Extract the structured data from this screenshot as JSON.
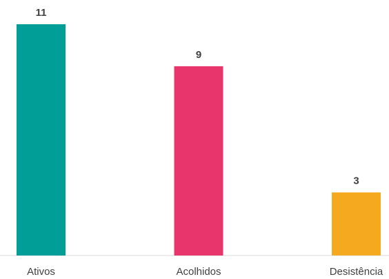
{
  "chart_data": {
    "type": "bar",
    "categories": [
      "Ativos",
      "Acolhidos",
      "Desistência"
    ],
    "values": [
      11,
      9,
      3
    ],
    "data_labels": [
      "11",
      "9",
      "3"
    ],
    "colors": [
      "#009e96",
      "#e8356b",
      "#f5a91e"
    ],
    "ylim": [
      0,
      12
    ],
    "grid": false,
    "legend": "none"
  }
}
